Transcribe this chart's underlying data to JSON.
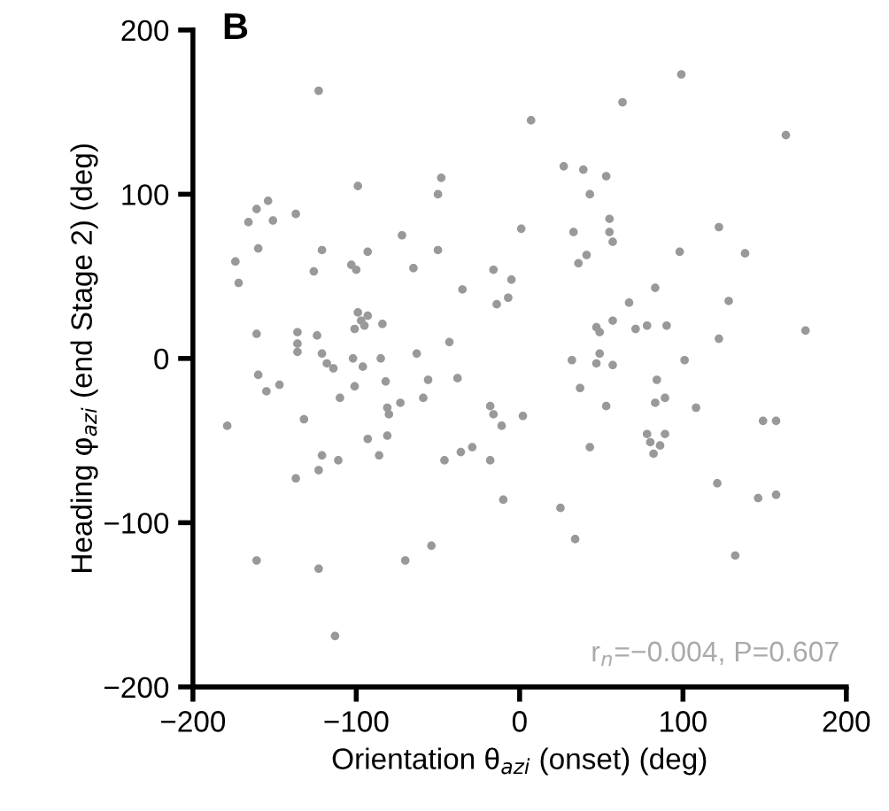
{
  "chart_data": {
    "type": "scatter",
    "xlabel": "Orientation θ$_{azi}$ (onset) (deg)",
    "ylabel": "Heading φ$_{azi}$ (end Stage 2) (deg)",
    "annotations": [
      "B",
      "r$_{n}$=−0.004, P=0.607"
    ],
    "xlim": [
      -200,
      200
    ],
    "xticks": [
      {
        "value": -200,
        "label": "−200"
      },
      {
        "value": -100,
        "label": "−100"
      },
      0,
      100,
      200
    ],
    "ylim": [
      -200,
      200
    ],
    "yticks": [
      {
        "value": -200,
        "label": "−200"
      },
      {
        "value": -100,
        "label": "−100"
      },
      0,
      100,
      200
    ],
    "grid": false,
    "legend": false,
    "marker": "circle",
    "series": [
      {
        "color": "#999999",
        "x": [
          -123,
          99,
          7,
          63,
          163,
          27,
          39,
          53,
          43,
          -48,
          -50,
          -99,
          -154,
          -161,
          -166,
          -151,
          -137,
          -174,
          -172,
          -160,
          -121,
          -126,
          -103,
          -100,
          -93,
          -72,
          -65,
          -50,
          -35,
          -16,
          -5,
          -14,
          -7,
          1,
          33,
          36,
          41,
          55,
          55,
          57,
          67,
          98,
          122,
          138,
          128,
          83,
          71,
          78,
          90,
          122,
          175,
          57,
          47,
          49,
          49,
          47,
          57,
          32,
          101,
          37,
          53,
          84,
          83,
          89,
          108,
          78,
          89,
          80,
          86,
          82,
          43,
          149,
          157,
          121,
          146,
          157,
          132,
          25,
          34,
          2,
          -10,
          -11,
          -18,
          -16,
          -18,
          -29,
          -36,
          -46,
          -54,
          -70,
          -38,
          -43,
          -56,
          -59,
          -63,
          -73,
          -81,
          -80,
          -82,
          -81,
          -86,
          -93,
          -85,
          -84,
          -99,
          -93,
          -97,
          -95,
          -101,
          -96,
          -102,
          -101,
          -110,
          -114,
          -118,
          -121,
          -124,
          -136,
          -136,
          -136,
          -161,
          -160,
          -155,
          -147,
          -179,
          -132,
          -137,
          -123,
          -121,
          -111,
          -161,
          -123,
          -113
        ],
        "values": [
          163,
          173,
          145,
          156,
          136,
          117,
          115,
          111,
          100,
          110,
          100,
          105,
          96,
          91,
          83,
          84,
          88,
          59,
          46,
          67,
          66,
          53,
          57,
          54,
          65,
          75,
          55,
          66,
          42,
          54,
          48,
          33,
          37,
          79,
          77,
          58,
          63,
          85,
          77,
          71,
          34,
          65,
          80,
          64,
          35,
          43,
          18,
          20,
          20,
          12,
          17,
          23,
          19,
          16,
          3,
          -3,
          -4,
          -1,
          -1,
          -18,
          -29,
          -13,
          -27,
          -24,
          -30,
          -46,
          -46,
          -51,
          -53,
          -58,
          -54,
          -38,
          -38,
          -76,
          -85,
          -83,
          -120,
          -91,
          -110,
          -35,
          -86,
          -41,
          -29,
          -34,
          -62,
          -54,
          -57,
          -62,
          -114,
          -123,
          -12,
          10,
          -13,
          -24,
          3,
          -27,
          -30,
          -34,
          -14,
          -47,
          -59,
          -49,
          0,
          21,
          28,
          26,
          23,
          20,
          18,
          -5,
          0,
          -17,
          -24,
          -6,
          -3,
          3,
          14,
          16,
          9,
          4,
          15,
          -10,
          -20,
          -16,
          -41,
          -37,
          -73,
          -68,
          -59,
          -62,
          -123,
          -128,
          -169
        ]
      }
    ]
  }
}
